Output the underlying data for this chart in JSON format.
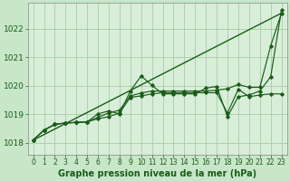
{
  "background_color": "#c8e6c8",
  "plot_bg_color": "#d8eed8",
  "grid_color": "#a8cca8",
  "line_color": "#1a5c1a",
  "title": "Graphe pression niveau de la mer (hPa)",
  "ylim": [
    1017.6,
    1022.9
  ],
  "xlim": [
    -0.5,
    23.5
  ],
  "yticks": [
    1018,
    1019,
    1020,
    1021,
    1022
  ],
  "xticks": [
    0,
    1,
    2,
    3,
    4,
    5,
    6,
    7,
    8,
    9,
    10,
    11,
    12,
    13,
    14,
    15,
    16,
    17,
    18,
    19,
    20,
    21,
    22,
    23
  ],
  "series_straight": {
    "x": [
      0,
      23
    ],
    "y": [
      1018.1,
      1022.55
    ]
  },
  "series1": {
    "x": [
      0,
      1,
      2,
      3,
      4,
      5,
      6,
      7,
      8,
      9,
      10,
      11,
      12,
      13,
      14,
      15,
      16,
      17,
      18,
      19,
      20,
      21,
      22,
      23
    ],
    "y": [
      1018.1,
      1018.45,
      1018.65,
      1018.7,
      1018.72,
      1018.74,
      1018.9,
      1019.05,
      1019.15,
      1019.65,
      1019.75,
      1019.82,
      1019.82,
      1019.82,
      1019.82,
      1019.82,
      1019.82,
      1019.85,
      1019.9,
      1020.05,
      1019.95,
      1019.95,
      1021.4,
      1022.55
    ]
  },
  "series2": {
    "x": [
      0,
      1,
      2,
      3,
      4,
      5,
      6,
      7,
      8,
      9,
      10,
      11,
      12,
      13,
      14,
      15,
      16,
      17,
      18,
      19,
      20,
      21,
      22,
      23
    ],
    "y": [
      1018.1,
      1018.45,
      1018.65,
      1018.7,
      1018.72,
      1018.74,
      1018.85,
      1018.92,
      1019.05,
      1019.6,
      1019.65,
      1019.72,
      1019.76,
      1019.76,
      1019.76,
      1019.76,
      1019.76,
      1019.76,
      1019.05,
      1019.88,
      1019.62,
      1019.68,
      1019.72,
      1019.72
    ]
  },
  "series3": {
    "x": [
      0,
      1,
      2,
      3,
      4,
      5,
      6,
      7,
      8,
      9,
      10,
      11,
      12,
      13,
      14,
      15,
      16,
      17,
      18,
      19,
      20,
      21,
      22,
      23
    ],
    "y": [
      1018.1,
      1018.45,
      1018.65,
      1018.7,
      1018.72,
      1018.74,
      1019.02,
      1019.12,
      1019.02,
      1019.82,
      1020.35,
      1020.02,
      1019.72,
      1019.72,
      1019.72,
      1019.72,
      1019.92,
      1019.98,
      1018.92,
      1019.62,
      1019.68,
      1019.82,
      1020.32,
      1022.65
    ]
  }
}
